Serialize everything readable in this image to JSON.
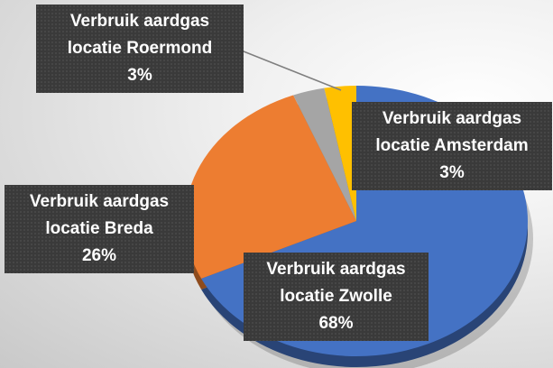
{
  "chart_data": {
    "type": "pie",
    "categories": [
      "Verbruik aardgas locatie Zwolle",
      "Verbruik aardgas locatie Breda",
      "Verbruik aardgas locatie Roermond",
      "Verbruik aardgas locatie Amsterdam"
    ],
    "values": [
      68,
      26,
      3,
      3
    ],
    "value_labels": [
      "68%",
      "26%",
      "3%",
      "3%"
    ],
    "colors": [
      "#4472c4",
      "#ed7d31",
      "#a5a5a5",
      "#ffc000"
    ]
  }
}
